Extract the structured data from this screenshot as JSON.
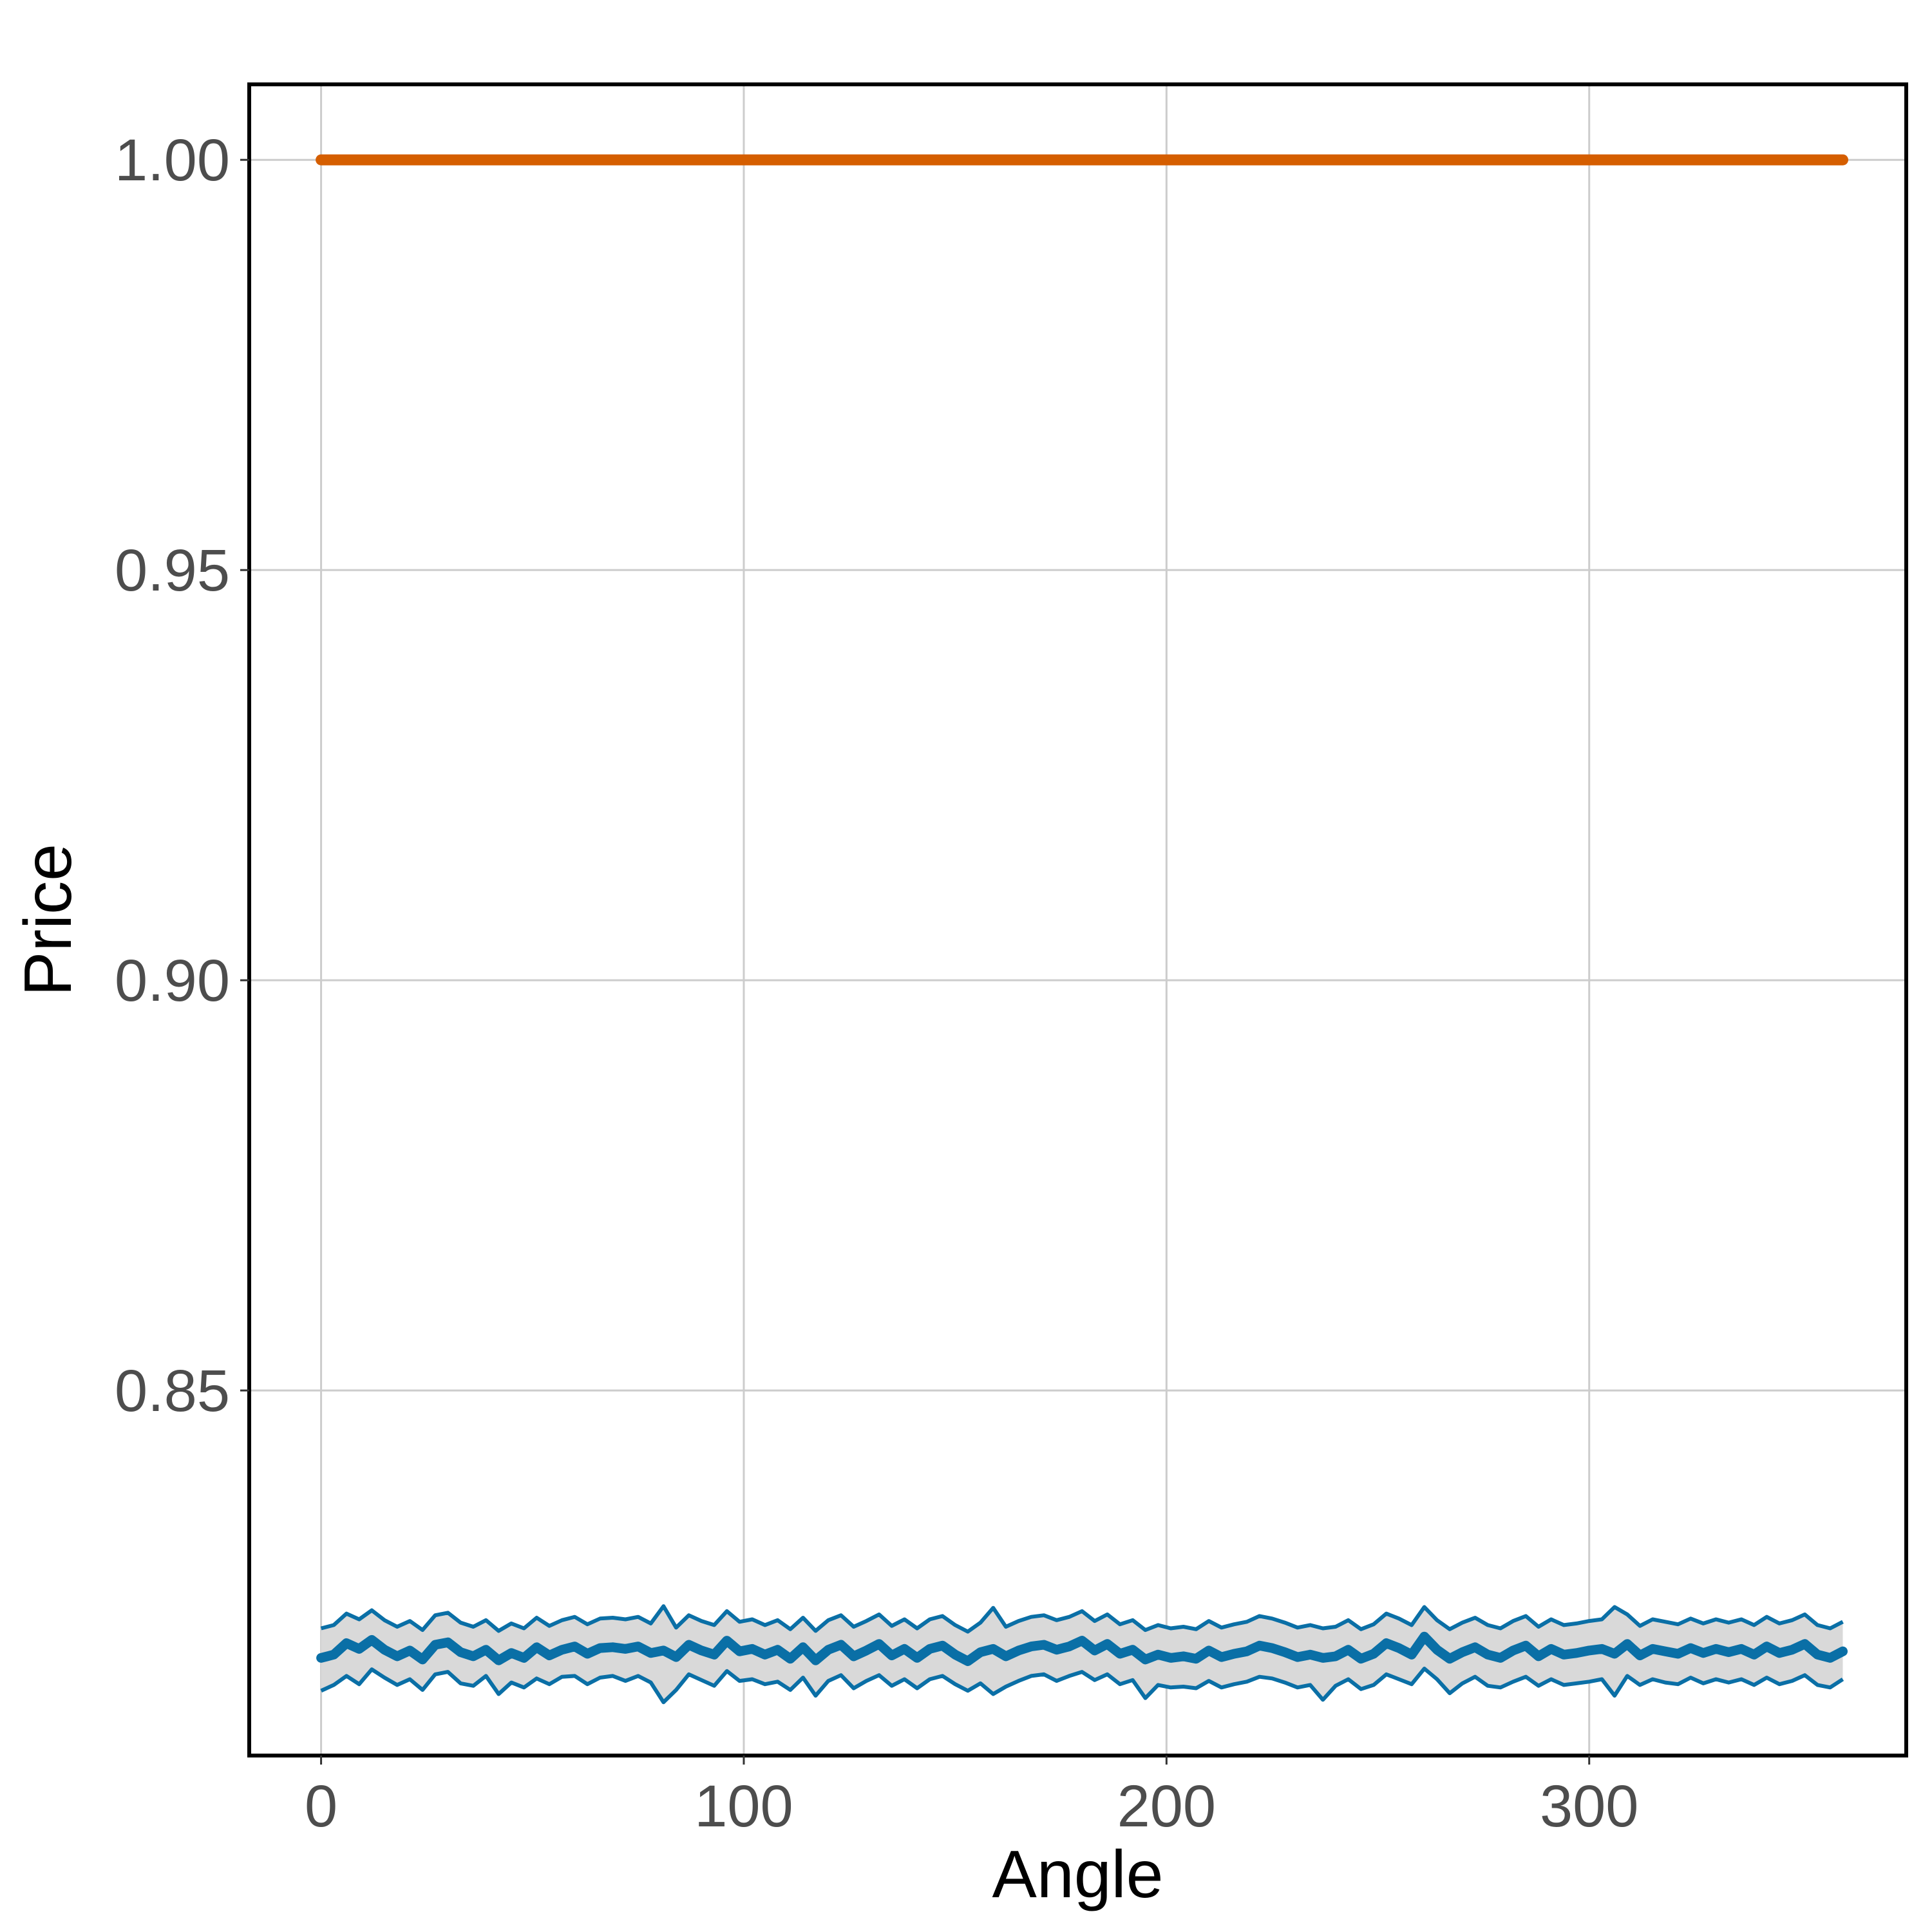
{
  "chart_data": {
    "type": "line",
    "title": "",
    "xlabel": "Angle",
    "ylabel": "Price",
    "xlim": [
      -17,
      375
    ],
    "ylim": [
      0.8055,
      1.0092
    ],
    "x_ticks": [
      0,
      100,
      200,
      300
    ],
    "x_tick_labels": [
      "0",
      "100",
      "200",
      "300"
    ],
    "y_ticks": [
      0.85,
      0.9,
      0.95,
      1.0
    ],
    "y_tick_labels": [
      "0.85",
      "0.90",
      "0.95",
      "1.00"
    ],
    "grid": true,
    "legend": "none",
    "colors": {
      "constant": "#d55e00",
      "mean": "#0a6fa6",
      "band_fill": "#d9d9d9",
      "band_edge": "#0a6fa6"
    },
    "series": [
      {
        "kind": "constant",
        "x": [
          0,
          360
        ],
        "values": [
          1.0,
          1.0
        ]
      },
      {
        "kind": "mean",
        "x": [
          0,
          3,
          6,
          9,
          12,
          15,
          18,
          21,
          24,
          27,
          30,
          33,
          36,
          39,
          42,
          45,
          48,
          51,
          54,
          57,
          60,
          63,
          66,
          69,
          72,
          75,
          78,
          81,
          84,
          87,
          90,
          93,
          96,
          99,
          102,
          105,
          108,
          111,
          114,
          117,
          120,
          123,
          126,
          129,
          132,
          135,
          138,
          141,
          144,
          147,
          150,
          153,
          156,
          159,
          162,
          165,
          168,
          171,
          174,
          177,
          180,
          183,
          186,
          189,
          192,
          195,
          198,
          201,
          204,
          207,
          210,
          213,
          216,
          219,
          222,
          225,
          228,
          231,
          234,
          237,
          240,
          243,
          246,
          249,
          252,
          255,
          258,
          261,
          264,
          267,
          270,
          273,
          276,
          279,
          282,
          285,
          288,
          291,
          294,
          297,
          300,
          303,
          306,
          309,
          312,
          315,
          318,
          321,
          324,
          327,
          330,
          333,
          336,
          339,
          342,
          345,
          348,
          351,
          354,
          357,
          360
        ],
        "values": [
          0.8174,
          0.8178,
          0.8192,
          0.8185,
          0.8196,
          0.8184,
          0.8176,
          0.8183,
          0.8172,
          0.819,
          0.8193,
          0.8181,
          0.8176,
          0.8184,
          0.8171,
          0.818,
          0.8174,
          0.8187,
          0.8177,
          0.8184,
          0.8188,
          0.8179,
          0.8186,
          0.8187,
          0.8185,
          0.8188,
          0.818,
          0.8183,
          0.8175,
          0.819,
          0.8183,
          0.8178,
          0.8195,
          0.8182,
          0.8185,
          0.8178,
          0.8184,
          0.8173,
          0.8187,
          0.8171,
          0.8184,
          0.819,
          0.8176,
          0.8183,
          0.8191,
          0.8177,
          0.8185,
          0.8174,
          0.8185,
          0.8189,
          0.8178,
          0.817,
          0.8181,
          0.8185,
          0.8176,
          0.8183,
          0.8188,
          0.819,
          0.8184,
          0.8188,
          0.8195,
          0.8183,
          0.8191,
          0.8179,
          0.8184,
          0.8172,
          0.8178,
          0.8174,
          0.8176,
          0.8173,
          0.8183,
          0.8175,
          0.8179,
          0.8182,
          0.8189,
          0.8186,
          0.8181,
          0.8175,
          0.8178,
          0.8174,
          0.8176,
          0.8184,
          0.8173,
          0.8179,
          0.8192,
          0.8186,
          0.8178,
          0.82,
          0.8184,
          0.8173,
          0.8181,
          0.8187,
          0.8178,
          0.8174,
          0.8183,
          0.8189,
          0.8176,
          0.8185,
          0.8178,
          0.818,
          0.8183,
          0.8185,
          0.8179,
          0.8191,
          0.8177,
          0.8185,
          0.8182,
          0.8179,
          0.8186,
          0.818,
          0.8185,
          0.8181,
          0.8185,
          0.8178,
          0.8188,
          0.818,
          0.8184,
          0.8191,
          0.8178,
          0.8174,
          0.8182
        ]
      },
      {
        "kind": "lower_band",
        "values": [
          0.8134,
          0.8141,
          0.8152,
          0.8142,
          0.816,
          0.815,
          0.8141,
          0.8148,
          0.8135,
          0.8154,
          0.8157,
          0.8143,
          0.814,
          0.8152,
          0.813,
          0.8144,
          0.8138,
          0.8149,
          0.8142,
          0.8151,
          0.8152,
          0.8142,
          0.815,
          0.8152,
          0.8146,
          0.8152,
          0.8144,
          0.812,
          0.8135,
          0.8154,
          0.8147,
          0.814,
          0.8158,
          0.8146,
          0.8148,
          0.8142,
          0.8145,
          0.8135,
          0.815,
          0.8128,
          0.8146,
          0.8153,
          0.8137,
          0.8146,
          0.8153,
          0.814,
          0.8148,
          0.8137,
          0.8148,
          0.8152,
          0.8142,
          0.8134,
          0.8143,
          0.813,
          0.8139,
          0.8146,
          0.8152,
          0.8154,
          0.8146,
          0.8152,
          0.8157,
          0.8147,
          0.8154,
          0.8142,
          0.8147,
          0.8125,
          0.8141,
          0.8138,
          0.8139,
          0.8137,
          0.8146,
          0.8138,
          0.8142,
          0.8145,
          0.8151,
          0.8149,
          0.8144,
          0.8138,
          0.8141,
          0.8123,
          0.814,
          0.8148,
          0.8136,
          0.8141,
          0.8154,
          0.8148,
          0.8142,
          0.8161,
          0.8148,
          0.8131,
          0.8143,
          0.8151,
          0.814,
          0.8138,
          0.8145,
          0.8151,
          0.814,
          0.8148,
          0.8141,
          0.8143,
          0.8145,
          0.8148,
          0.8128,
          0.8152,
          0.8141,
          0.8148,
          0.8144,
          0.8142,
          0.815,
          0.8143,
          0.8148,
          0.8144,
          0.8148,
          0.8141,
          0.815,
          0.8142,
          0.8146,
          0.8153,
          0.8141,
          0.8138,
          0.8148
        ]
      },
      {
        "kind": "upper_band",
        "values": [
          0.821,
          0.8214,
          0.8228,
          0.8221,
          0.8232,
          0.822,
          0.8212,
          0.8219,
          0.8208,
          0.8226,
          0.8229,
          0.8217,
          0.8212,
          0.822,
          0.8207,
          0.8216,
          0.821,
          0.8223,
          0.8213,
          0.822,
          0.8224,
          0.8215,
          0.8222,
          0.8223,
          0.8221,
          0.8224,
          0.8216,
          0.8237,
          0.8211,
          0.8226,
          0.8219,
          0.8214,
          0.8231,
          0.8218,
          0.8221,
          0.8214,
          0.822,
          0.8209,
          0.8223,
          0.8207,
          0.822,
          0.8226,
          0.8212,
          0.8219,
          0.8227,
          0.8213,
          0.8221,
          0.821,
          0.8221,
          0.8225,
          0.8214,
          0.8206,
          0.8217,
          0.8235,
          0.8212,
          0.8219,
          0.8224,
          0.8226,
          0.822,
          0.8224,
          0.8231,
          0.8219,
          0.8227,
          0.8215,
          0.822,
          0.8208,
          0.8214,
          0.821,
          0.8212,
          0.8209,
          0.8219,
          0.8211,
          0.8215,
          0.8218,
          0.8225,
          0.8222,
          0.8217,
          0.8211,
          0.8214,
          0.821,
          0.8212,
          0.822,
          0.8209,
          0.8215,
          0.8228,
          0.8222,
          0.8214,
          0.8236,
          0.822,
          0.8209,
          0.8217,
          0.8223,
          0.8214,
          0.821,
          0.8219,
          0.8225,
          0.8212,
          0.8221,
          0.8214,
          0.8216,
          0.8219,
          0.8221,
          0.8236,
          0.8227,
          0.8213,
          0.8221,
          0.8218,
          0.8215,
          0.8222,
          0.8216,
          0.8221,
          0.8217,
          0.8221,
          0.8214,
          0.8224,
          0.8216,
          0.822,
          0.8227,
          0.8214,
          0.821,
          0.8218
        ]
      }
    ]
  }
}
